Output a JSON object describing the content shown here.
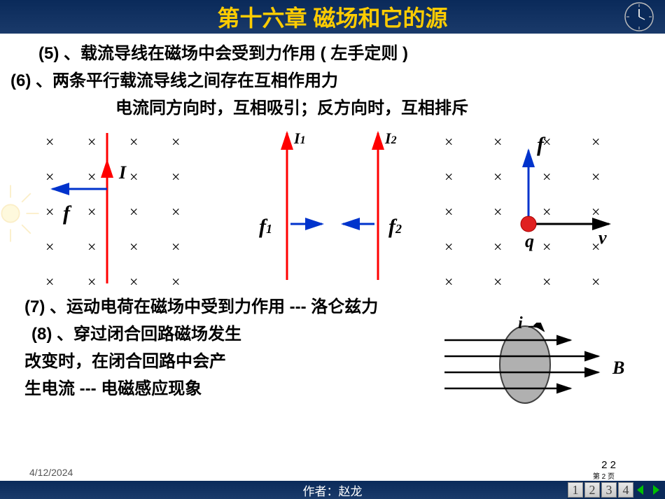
{
  "header": {
    "title": "第十六章  磁场和它的源"
  },
  "lines": {
    "p5": "(5) 、载流导线在磁场中会受到力作用 ( 左手定则 )",
    "p6": "(6) 、两条平行载流导线之间存在互相作用力",
    "p6b": "电流同方向时，互相吸引；反方向时，互相排斥",
    "p7": "(7) 、运动电荷在磁场中受到力作用 --- 洛仑兹力",
    "p8a": "(8) 、穿过闭合回路磁场发生",
    "p8b": "改变时，在闭合回路中会产",
    "p8c": "生电流 --- 电磁感应现象"
  },
  "labels": {
    "I": "I",
    "f": "f",
    "I1": "I",
    "I2": "I",
    "f1": "f",
    "f2": "f",
    "q": "q",
    "v": "v",
    "i": "i",
    "B": "B",
    "s1": "1",
    "s2": "2"
  },
  "colors": {
    "arrow_red": "#ff0000",
    "arrow_blue": "#0033cc",
    "arrow_black": "#000000",
    "charge_red": "#e02020",
    "ellipse_fill": "#b0b0b0",
    "ellipse_stroke": "#404040"
  },
  "grid1": {
    "cols": [
      30,
      90,
      150,
      210
    ],
    "rows": [
      10,
      60,
      110,
      160,
      210
    ]
  },
  "grid3": {
    "cols": [
      20,
      90,
      160,
      230
    ],
    "rows": [
      10,
      60,
      110,
      160,
      210
    ]
  },
  "footer": {
    "author": "作者：赵龙",
    "date": "4/12/2024",
    "pagenum": "2    2",
    "pagetext": "第 2 页"
  },
  "nav": {
    "items": [
      "1",
      "2",
      "3",
      "4"
    ]
  }
}
